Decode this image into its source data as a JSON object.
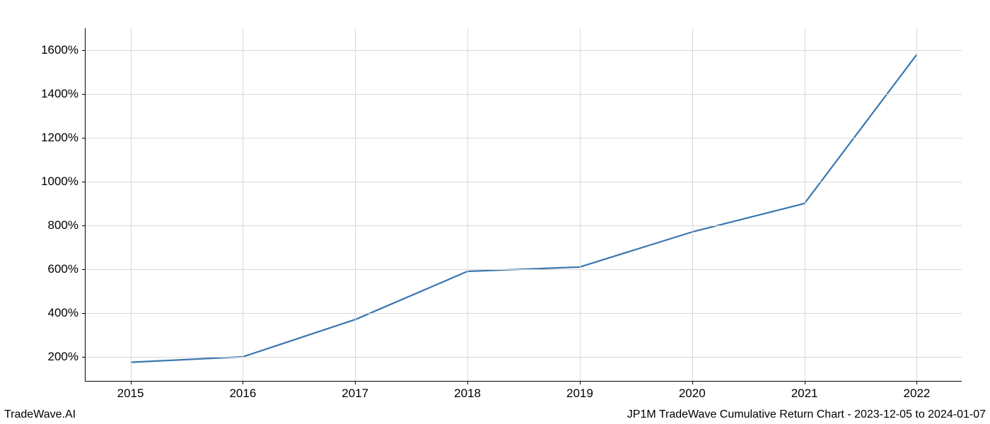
{
  "chart": {
    "type": "line",
    "x_values": [
      2015,
      2016,
      2017,
      2018,
      2019,
      2020,
      2021,
      2022
    ],
    "y_values": [
      175,
      200,
      370,
      590,
      610,
      770,
      900,
      1580
    ],
    "xlim": [
      2014.6,
      2022.4
    ],
    "ylim": [
      90,
      1700
    ],
    "x_ticks": [
      2015,
      2016,
      2017,
      2018,
      2019,
      2020,
      2021,
      2022
    ],
    "x_tick_labels": [
      "2015",
      "2016",
      "2017",
      "2018",
      "2019",
      "2020",
      "2021",
      "2022"
    ],
    "y_ticks": [
      200,
      400,
      600,
      800,
      1000,
      1200,
      1400,
      1600
    ],
    "y_tick_labels": [
      "200%",
      "400%",
      "600%",
      "800%",
      "1000%",
      "1200%",
      "1400%",
      "1600%"
    ],
    "line_color": "#3a76af",
    "line_width": 2.2,
    "grid_color": "#d9d9d9",
    "background_color": "#ffffff",
    "axis_color": "#000000",
    "tick_fontsize": 17,
    "footer_fontsize": 16
  },
  "footer": {
    "left": "TradeWave.AI",
    "right": "JP1M TradeWave Cumulative Return Chart - 2023-12-05 to 2024-01-07"
  }
}
